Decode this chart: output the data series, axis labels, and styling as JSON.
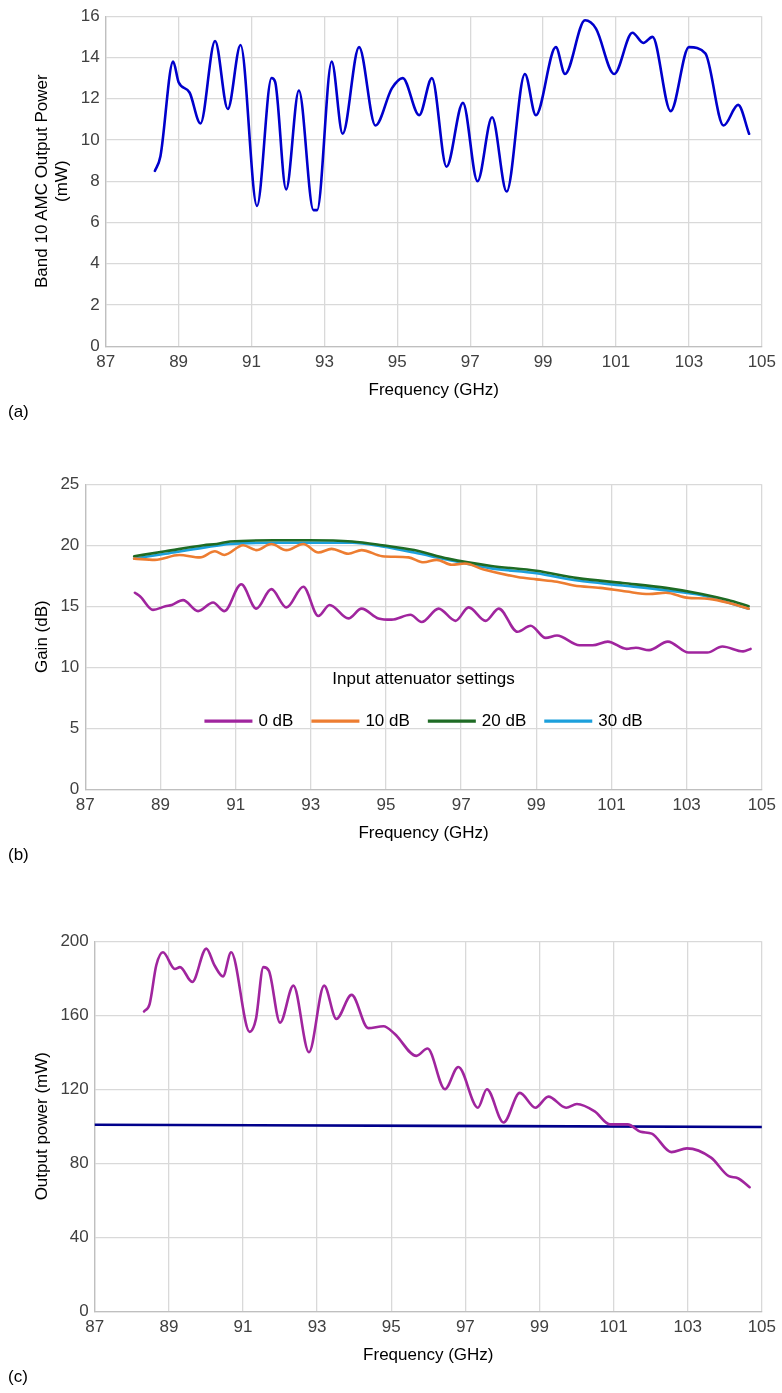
{
  "chart_data": [
    {
      "type": "line",
      "xlabel": "Frequency (GHz)",
      "ylabel": "Band 10 AMC Output Power (mW)",
      "annotations": [
        "(a)"
      ],
      "x": [
        88.35,
        88.5,
        88.85,
        89.0,
        89.3,
        89.6,
        90.0,
        90.35,
        90.7,
        91.15,
        91.55,
        91.65,
        91.95,
        92.3,
        92.7,
        92.8,
        93.2,
        93.5,
        93.95,
        94.4,
        94.85,
        95.15,
        95.6,
        95.95,
        96.35,
        96.8,
        97.2,
        97.6,
        98.0,
        98.5,
        98.8,
        99.35,
        99.6,
        100.15,
        100.45,
        100.95,
        101.45,
        101.75,
        102.0,
        102.5,
        103.0,
        103.45,
        103.95,
        104.35,
        104.65
      ],
      "series": [
        {
          "color": "#0000cc",
          "values": [
            8.5,
            9.2,
            13.8,
            12.8,
            12.3,
            10.8,
            14.8,
            11.5,
            14.6,
            6.8,
            13.0,
            12.8,
            7.6,
            12.4,
            6.6,
            6.6,
            13.8,
            10.3,
            14.5,
            10.7,
            12.5,
            13.0,
            11.2,
            13.0,
            8.7,
            11.8,
            8.0,
            11.1,
            7.5,
            13.2,
            11.2,
            14.5,
            13.2,
            15.8,
            15.4,
            13.2,
            15.2,
            14.7,
            15.0,
            11.4,
            14.5,
            14.2,
            10.7,
            11.7,
            10.3
          ]
        }
      ],
      "xlim": [
        87,
        105
      ],
      "xticks": [
        87,
        89,
        91,
        93,
        95,
        97,
        99,
        101,
        103,
        105
      ],
      "ylim": [
        0,
        16
      ],
      "yticks": [
        0,
        2,
        4,
        6,
        8,
        10,
        12,
        14,
        16
      ],
      "grid": true,
      "marker": "none",
      "line_style": "solid"
    },
    {
      "type": "line",
      "xlabel": "Frequency (GHz)",
      "ylabel": "Gain (dB)",
      "annotations": [
        "(b)"
      ],
      "legend_title": "Input attenuator settings",
      "legend": "bottom",
      "series": [
        {
          "name": "0 dB",
          "color": "#a0259e",
          "x": [
            88.32,
            88.46,
            88.8,
            89.13,
            89.3,
            89.6,
            90.0,
            90.4,
            90.7,
            91.15,
            91.55,
            91.95,
            92.35,
            92.8,
            93.2,
            93.5,
            94.0,
            94.35,
            94.8,
            95.15,
            95.65,
            95.95,
            96.4,
            96.85,
            97.2,
            97.65,
            98.0,
            98.5,
            98.85,
            99.25,
            99.55,
            100.15,
            100.5,
            100.9,
            101.4,
            101.65,
            102.0,
            102.5,
            103.05,
            103.55,
            103.95,
            104.5,
            104.7
          ],
          "values": [
            16.1,
            15.8,
            14.7,
            15.0,
            15.1,
            15.5,
            14.6,
            15.3,
            14.6,
            16.8,
            14.8,
            16.4,
            14.9,
            16.6,
            14.2,
            15.1,
            14.0,
            14.8,
            14.0,
            13.9,
            14.3,
            13.7,
            14.8,
            13.8,
            14.9,
            13.8,
            14.8,
            12.9,
            13.4,
            12.4,
            12.6,
            11.8,
            11.8,
            12.1,
            11.5,
            11.6,
            11.4,
            12.1,
            11.2,
            11.2,
            11.7,
            11.3,
            11.5
          ]
        },
        {
          "name": "10 dB",
          "color": "#ed7d31",
          "x": [
            88.3,
            88.85,
            89.5,
            90.05,
            90.45,
            90.7,
            91.2,
            91.55,
            91.95,
            92.35,
            92.8,
            93.2,
            93.55,
            94.0,
            94.35,
            94.9,
            95.6,
            96.0,
            96.35,
            96.75,
            97.1,
            97.6,
            98.5,
            99.0,
            99.55,
            100.0,
            100.7,
            101.4,
            102.0,
            102.45,
            103.0,
            103.6,
            104.2,
            104.65
          ],
          "values": [
            18.9,
            18.8,
            19.2,
            19.0,
            19.5,
            19.2,
            20.0,
            19.6,
            20.1,
            19.6,
            20.1,
            19.4,
            19.7,
            19.3,
            19.6,
            19.1,
            19.0,
            18.6,
            18.8,
            18.4,
            18.5,
            18.0,
            17.4,
            17.2,
            17.0,
            16.7,
            16.5,
            16.2,
            16.0,
            16.1,
            15.7,
            15.6,
            15.2,
            14.8
          ]
        },
        {
          "name": "20 dB",
          "color": "#1e6b24",
          "x": [
            88.3,
            89.13,
            90.15,
            90.5,
            90.85,
            92.0,
            92.95,
            94.1,
            94.9,
            95.75,
            96.65,
            97.8,
            99.0,
            100.1,
            101.3,
            102.45,
            103.4,
            104.1,
            104.65
          ],
          "values": [
            19.1,
            19.5,
            20.0,
            20.1,
            20.3,
            20.4,
            20.4,
            20.3,
            20.0,
            19.6,
            18.9,
            18.3,
            17.9,
            17.3,
            16.9,
            16.5,
            16.0,
            15.5,
            15.0
          ]
        },
        {
          "name": "30 dB",
          "color": "#1ca0dc",
          "x": [
            88.3,
            89.13,
            90.15,
            90.85,
            92.0,
            92.95,
            94.1,
            94.9,
            95.75,
            96.65,
            97.8,
            99.0,
            100.1,
            101.3,
            102.45,
            103.4,
            104.1,
            104.65
          ],
          "values": [
            18.9,
            19.3,
            19.8,
            20.1,
            20.2,
            20.2,
            20.2,
            19.9,
            19.4,
            18.8,
            18.1,
            17.7,
            17.1,
            16.7,
            16.3,
            15.9,
            15.3,
            14.8
          ]
        }
      ],
      "xlim": [
        87,
        105
      ],
      "xticks": [
        87,
        89,
        91,
        93,
        95,
        97,
        99,
        101,
        103,
        105
      ],
      "ylim": [
        0,
        25
      ],
      "yticks": [
        0,
        5,
        10,
        15,
        20,
        25
      ],
      "grid": true,
      "marker": "none",
      "line_style": "solid"
    },
    {
      "type": "line",
      "xlabel": "Frequency (GHz)",
      "ylabel": "Output power (mW)",
      "annotations": [
        "(c)"
      ],
      "series": [
        {
          "color": "#a0259e",
          "x": [
            88.33,
            88.48,
            88.66,
            88.84,
            89.16,
            89.3,
            89.63,
            90.01,
            90.23,
            90.46,
            90.68,
            91.18,
            91.35,
            91.55,
            91.7,
            92.0,
            92.36,
            92.78,
            93.19,
            93.52,
            93.93,
            94.38,
            94.79,
            95.09,
            95.68,
            95.98,
            96.45,
            96.81,
            97.34,
            97.58,
            98.03,
            98.47,
            98.89,
            99.24,
            99.72,
            100.01,
            100.49,
            100.9,
            101.38,
            101.73,
            102.03,
            102.56,
            102.98,
            103.63,
            104.11,
            104.34,
            104.67
          ],
          "values": [
            162,
            166,
            187,
            194,
            185,
            186,
            178,
            196,
            187,
            181,
            194,
            151,
            158,
            186,
            184,
            156,
            176,
            140,
            176,
            158,
            171,
            153,
            154,
            150,
            138,
            142,
            120,
            132,
            110,
            120,
            102,
            118,
            110,
            116,
            110,
            112,
            108,
            101,
            101,
            97,
            96,
            86,
            88,
            83,
            73,
            72,
            67
          ]
        },
        {
          "color": "#00008b",
          "x": [
            87,
            105
          ],
          "values": [
            100.8,
            99.6
          ]
        }
      ],
      "xlim": [
        87,
        105
      ],
      "xticks": [
        87,
        89,
        91,
        93,
        95,
        97,
        99,
        101,
        103,
        105
      ],
      "ylim": [
        0,
        200
      ],
      "yticks": [
        0,
        40,
        80,
        120,
        160,
        200
      ],
      "grid": true,
      "marker": "none",
      "line_style": "solid"
    }
  ]
}
